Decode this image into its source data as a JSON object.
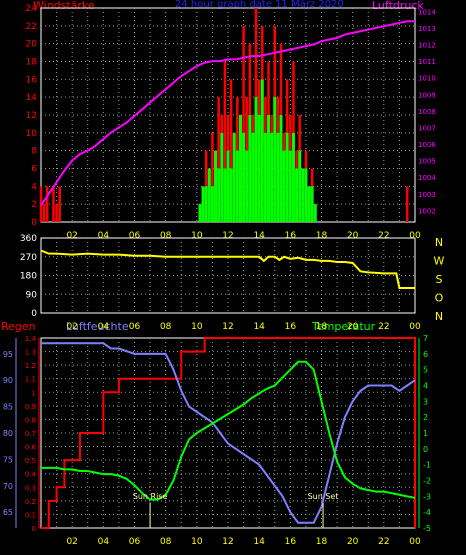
{
  "header": {
    "left_label": "Windstärke",
    "center_title": "24 hour graph date  11 März 2020",
    "right_label": "Luftdruck"
  },
  "colors": {
    "background": "#000000",
    "frame": "#ffffff",
    "wind": "#ff0000",
    "gust": "#00ff00",
    "pressure": "#ff00ff",
    "direction": "#ffff00",
    "rain": "#ff0000",
    "humidity": "#8080ff",
    "temperature": "#00ff00",
    "grid": "#9a9a9a",
    "title": "#2020ff",
    "ticks_left_top": "#ff0000",
    "ticks_right_top": "#ff00ff",
    "ticks_x": "#ffff00",
    "ticks_left_rain": "#ff0000",
    "ticks_left_humidity": "#8080ff",
    "ticks_right_temp": "#00ff00",
    "sun_marker": "#ffffa0"
  },
  "chart_data": [
    {
      "id": "wind_pressure",
      "type": "line",
      "title": "24 hour graph date  11 März 2020",
      "left_axis_label": "Windstärke",
      "right_axis_label": "Luftdruck",
      "x_ticks": [
        "02",
        "04",
        "06",
        "08",
        "10",
        "12",
        "14",
        "16",
        "18",
        "20",
        "22",
        "00"
      ],
      "y_left_ticks": [
        "0",
        "2",
        "4",
        "6",
        "8",
        "10",
        "12",
        "14",
        "16",
        "18",
        "20",
        "22",
        "24"
      ],
      "y_left_lim": [
        0,
        24
      ],
      "y_right_ticks": [
        "1002",
        "1003",
        "1004",
        "1005",
        "1006",
        "1007",
        "1008",
        "1009",
        "1010",
        "1011",
        "1012",
        "1013",
        "1014"
      ],
      "y_right_lim": [
        1001.3,
        1014.2
      ],
      "grid": true,
      "series": [
        {
          "name": "pressure",
          "x": [
            0,
            0.5,
            1,
            1.5,
            2,
            2.5,
            3,
            3.5,
            4,
            4.5,
            5,
            5.5,
            6,
            6.5,
            7,
            7.5,
            8,
            8.5,
            9,
            9.5,
            10,
            10.5,
            11,
            11.5,
            12,
            12.5,
            13,
            13.5,
            14,
            14.5,
            15,
            15.5,
            16,
            16.5,
            17,
            17.5,
            18,
            18.5,
            19,
            19.5,
            20,
            20.5,
            21,
            21.5,
            22,
            22.5,
            23,
            23.5,
            24
          ],
          "y": [
            1002.3,
            1003.0,
            1003.7,
            1004.4,
            1005.0,
            1005.4,
            1005.6,
            1005.9,
            1006.3,
            1006.7,
            1007.0,
            1007.3,
            1007.7,
            1008.1,
            1008.5,
            1008.9,
            1009.3,
            1009.7,
            1010.1,
            1010.4,
            1010.7,
            1010.9,
            1011.0,
            1011.0,
            1011.1,
            1011.1,
            1011.2,
            1011.3,
            1011.3,
            1011.4,
            1011.5,
            1011.6,
            1011.7,
            1011.8,
            1011.9,
            1012.0,
            1012.2,
            1012.3,
            1012.4,
            1012.6,
            1012.7,
            1012.8,
            1012.9,
            1013.0,
            1013.1,
            1013.2,
            1013.3,
            1013.4,
            1013.4
          ]
        },
        {
          "name": "wind_gust_bars",
          "x": [
            0.0,
            0.2,
            0.4,
            0.6,
            0.8,
            1.0,
            1.2,
            1.4,
            1.6,
            1.8,
            2.0,
            2.5,
            3.0,
            3.5,
            4.0,
            4.5,
            5.0,
            5.5,
            6.0,
            6.5,
            7.0,
            7.5,
            8.0,
            8.5,
            9.0,
            9.5,
            10.0,
            10.2,
            10.4,
            10.6,
            10.8,
            11.0,
            11.2,
            11.4,
            11.6,
            11.8,
            12.0,
            12.2,
            12.4,
            12.6,
            12.8,
            13.0,
            13.2,
            13.4,
            13.6,
            13.8,
            14.0,
            14.2,
            14.4,
            14.6,
            14.8,
            15.0,
            15.2,
            15.4,
            15.6,
            15.8,
            16.0,
            16.2,
            16.4,
            16.6,
            16.8,
            17.0,
            17.2,
            17.4,
            17.6,
            17.8,
            18.0,
            18.5,
            19.0,
            19.5,
            20.0,
            20.5,
            21.0,
            21.5,
            22.0,
            22.5,
            23.0,
            23.5
          ],
          "y": [
            4,
            2,
            4,
            0,
            4,
            2,
            4,
            0,
            0,
            0,
            0,
            0,
            0,
            0,
            0,
            0,
            0,
            0,
            0,
            0,
            0,
            0,
            0,
            0,
            0,
            0,
            0,
            2,
            4,
            8,
            6,
            10,
            8,
            14,
            12,
            18,
            12,
            16,
            10,
            14,
            8,
            22,
            14,
            20,
            12,
            24,
            16,
            22,
            14,
            18,
            12,
            22,
            14,
            20,
            10,
            16,
            12,
            18,
            8,
            12,
            6,
            8,
            4,
            6,
            2,
            0,
            0,
            0,
            0,
            0,
            0,
            0,
            0,
            0,
            0,
            0,
            0,
            4
          ]
        },
        {
          "name": "wind_mean_bars",
          "x": [
            10.2,
            10.4,
            10.6,
            10.8,
            11.0,
            11.2,
            11.4,
            11.6,
            11.8,
            12.0,
            12.2,
            12.4,
            12.6,
            12.8,
            13.0,
            13.2,
            13.4,
            13.6,
            13.8,
            14.0,
            14.2,
            14.4,
            14.6,
            14.8,
            15.0,
            15.2,
            15.4,
            15.6,
            15.8,
            16.0,
            16.2,
            16.4,
            16.6,
            16.8,
            17.0,
            17.2,
            17.4,
            17.6
          ],
          "y": [
            2,
            4,
            4,
            6,
            4,
            8,
            6,
            10,
            6,
            8,
            6,
            10,
            8,
            12,
            10,
            8,
            12,
            10,
            14,
            12,
            16,
            10,
            12,
            10,
            14,
            10,
            12,
            8,
            10,
            8,
            10,
            6,
            8,
            6,
            6,
            4,
            4,
            2
          ]
        }
      ]
    },
    {
      "id": "wind_direction",
      "type": "line",
      "right_axis_label": "N W S O N",
      "y_ticks": [
        "0",
        "90",
        "180",
        "270",
        "360"
      ],
      "y_lim": [
        0,
        360
      ],
      "x_ticks": [
        "02",
        "04",
        "06",
        "08",
        "10",
        "12",
        "14",
        "16",
        "18",
        "20",
        "22",
        "00"
      ],
      "grid": true,
      "series": [
        {
          "name": "direction",
          "x": [
            0,
            0.5,
            1,
            2,
            3,
            4,
            5,
            6,
            7,
            8,
            9,
            10,
            11,
            12,
            13,
            14,
            14.3,
            14.6,
            15,
            15.3,
            15.6,
            16,
            16.5,
            17,
            17.5,
            18,
            18.5,
            19,
            19.5,
            20,
            20.5,
            21,
            22,
            22.8,
            23,
            23.5,
            24
          ],
          "y": [
            300,
            285,
            285,
            280,
            285,
            280,
            280,
            275,
            275,
            270,
            270,
            270,
            270,
            270,
            270,
            270,
            250,
            270,
            270,
            255,
            270,
            260,
            265,
            255,
            255,
            250,
            250,
            245,
            245,
            240,
            200,
            195,
            190,
            190,
            120,
            120,
            120
          ]
        }
      ]
    },
    {
      "id": "rain_humidity_temp",
      "type": "line",
      "left_axis_label": "Regen",
      "middle_axis_label": "Luftfeuchte",
      "right_axis_label": "Temperatur",
      "rain_ticks": [
        "0",
        "0.1",
        "0.2",
        "0.3",
        "0.4",
        "0.5",
        "0.6",
        "0.7",
        "0.8",
        "0.9",
        "1",
        "1.1",
        "1.2",
        "1.3",
        "1.4"
      ],
      "rain_lim": [
        0,
        1.4
      ],
      "humidity_ticks": [
        "65",
        "70",
        "75",
        "80",
        "85",
        "90",
        "95"
      ],
      "humidity_lim": [
        62,
        98
      ],
      "temp_ticks": [
        "-5",
        "-4",
        "-3",
        "-2",
        "-1",
        "0",
        "1",
        "2",
        "3",
        "4",
        "5",
        "6",
        "7"
      ],
      "temp_lim": [
        -5,
        7
      ],
      "x_ticks": [
        "02",
        "04",
        "06",
        "08",
        "10",
        "12",
        "14",
        "16",
        "18",
        "20",
        "22",
        "00"
      ],
      "annotations": [
        "Sun Rise",
        "Sun Set"
      ],
      "sun_rise_x": 7.0,
      "sun_set_x": 18.1,
      "grid": true,
      "series": [
        {
          "name": "rain",
          "x": [
            0,
            0.5,
            0.5,
            1,
            1,
            1.5,
            1.5,
            2.5,
            2.5,
            4,
            4,
            5,
            5,
            9,
            9,
            10.5,
            10.5,
            24,
            24
          ],
          "y": [
            0,
            0,
            0.2,
            0.2,
            0.3,
            0.3,
            0.5,
            0.5,
            0.7,
            0.7,
            1.0,
            1.0,
            1.1,
            1.1,
            1.3,
            1.3,
            1.4,
            1.4,
            0
          ]
        },
        {
          "name": "humidity",
          "x": [
            0,
            1,
            2,
            3,
            4,
            4.5,
            5,
            6,
            7,
            8,
            8.5,
            9,
            9.5,
            10,
            10.5,
            11,
            11.5,
            12,
            12.5,
            13,
            13.5,
            14,
            14.5,
            15,
            15.5,
            16,
            16.5,
            17,
            17.5,
            18,
            18.5,
            19,
            19.5,
            20,
            20.5,
            21,
            21.5,
            22,
            22.5,
            23,
            23.5,
            24
          ],
          "y": [
            97,
            97,
            97,
            97,
            97,
            96,
            96,
            95,
            95,
            95,
            92,
            88,
            85,
            84,
            83,
            82,
            80,
            78,
            77,
            76,
            75,
            74,
            72,
            70,
            68,
            65,
            63,
            63,
            63,
            66,
            72,
            78,
            83,
            86,
            88,
            89,
            89,
            89,
            89,
            88,
            89,
            90
          ]
        },
        {
          "name": "temperature",
          "x": [
            0,
            0.5,
            1,
            1.5,
            2,
            2.5,
            3,
            3.5,
            4,
            4.5,
            5,
            5.5,
            6,
            6.5,
            7,
            7.5,
            8,
            8.5,
            9,
            9.5,
            10,
            10.5,
            11,
            11.5,
            12,
            12.5,
            13,
            13.5,
            14,
            14.5,
            15,
            15.5,
            16,
            16.5,
            17,
            17.5,
            18,
            18.5,
            19,
            19.5,
            20,
            20.5,
            21,
            21.5,
            22,
            22.5,
            23,
            23.5,
            24
          ],
          "y": [
            -1.2,
            -1.2,
            -1.2,
            -1.3,
            -1.3,
            -1.4,
            -1.4,
            -1.5,
            -1.6,
            -1.6,
            -1.7,
            -1.9,
            -2.3,
            -2.8,
            -3.2,
            -3.2,
            -2.9,
            -2.0,
            -0.5,
            0.6,
            1.0,
            1.3,
            1.6,
            1.9,
            2.2,
            2.5,
            2.8,
            3.2,
            3.5,
            3.8,
            4.0,
            4.5,
            5.0,
            5.5,
            5.5,
            5.0,
            3.0,
            1.0,
            -0.8,
            -1.8,
            -2.2,
            -2.5,
            -2.6,
            -2.7,
            -2.7,
            -2.8,
            -2.9,
            -3.0,
            -3.1
          ]
        }
      ]
    }
  ]
}
